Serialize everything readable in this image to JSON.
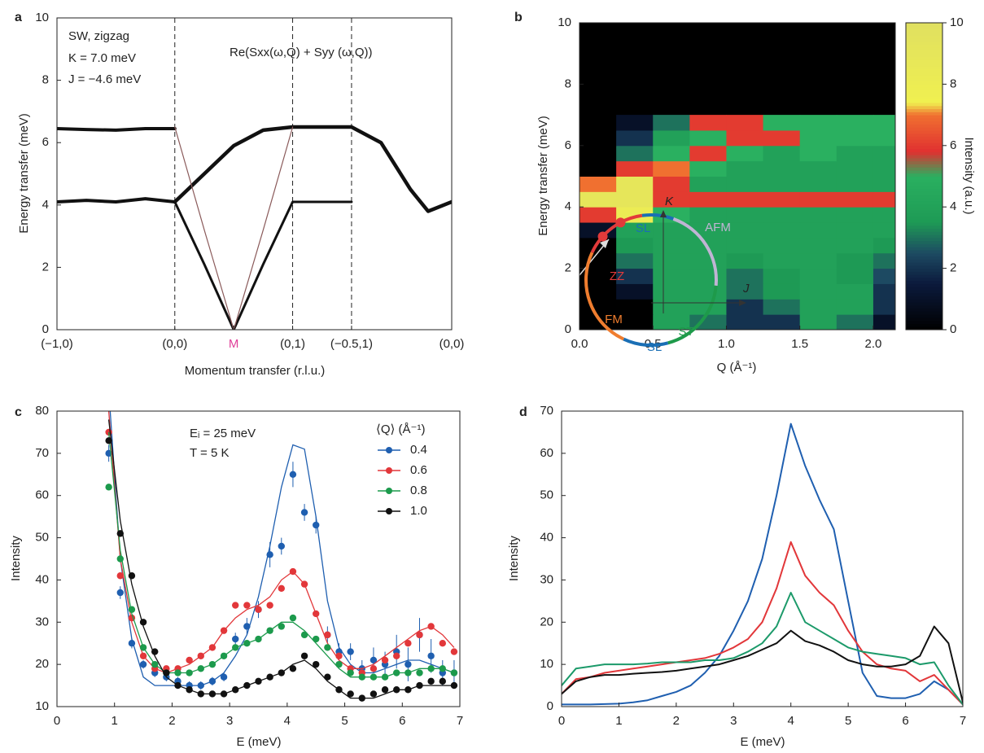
{
  "chart_data": [
    {
      "type": "line",
      "label": "a",
      "annotations": [
        "SW, zigzag",
        "K = 7.0 meV",
        "J = −4.6 meV",
        "Re(Sxx(ω,Q) + Syy (ω,Q))"
      ],
      "xlabel": "Momentum transfer (r.l.u.)",
      "ylabel": "Energy transfer (meV)",
      "xlim": [
        0,
        6.7
      ],
      "ylim": [
        0,
        10
      ],
      "xticks": [
        {
          "value": 0,
          "label": "(−1,0)"
        },
        {
          "value": 2,
          "label": "(0,0)"
        },
        {
          "value": 3,
          "label": "M",
          "color": "#e0409a"
        },
        {
          "value": 4,
          "label": "(0,1)"
        },
        {
          "value": 5,
          "label": "(−0.5,1)"
        },
        {
          "value": 6.7,
          "label": "(0,0)"
        }
      ],
      "yticks": [
        0,
        2,
        4,
        6,
        8,
        10
      ],
      "vlines": [
        2,
        4,
        5
      ],
      "x": [
        0,
        0.5,
        1,
        1.5,
        2,
        2.5,
        3,
        3.5,
        4,
        4.5,
        5,
        5.5,
        6,
        6.3,
        6.7
      ],
      "series": [
        {
          "color": "#111111",
          "width": 4,
          "values": [
            6.45,
            6.42,
            6.4,
            6.45,
            6.45,
            null,
            null,
            null,
            null,
            null,
            null,
            null,
            null,
            null,
            null
          ]
        },
        {
          "color": "#111111",
          "width": 4,
          "values": [
            4.1,
            4.15,
            4.1,
            4.2,
            4.1,
            null,
            null,
            null,
            null,
            null,
            null,
            null,
            null,
            null,
            null
          ]
        },
        {
          "color": "#111111",
          "width": 4.5,
          "values": [
            null,
            null,
            null,
            null,
            4.1,
            5.0,
            5.9,
            6.4,
            6.5,
            6.5,
            6.5,
            6.0,
            4.5,
            3.8,
            4.1
          ]
        },
        {
          "color": "#111111",
          "width": 3,
          "values": [
            null,
            null,
            null,
            null,
            4.1,
            2.1,
            0,
            2.1,
            4.1,
            4.1,
            4.1,
            null,
            null,
            null,
            null
          ]
        },
        {
          "color": "#8a5a5a",
          "width": 1.2,
          "values": [
            null,
            null,
            null,
            null,
            6.5,
            3.2,
            0,
            3.2,
            6.5,
            null,
            null,
            null,
            null,
            null,
            null
          ]
        }
      ]
    },
    {
      "type": "heatmap",
      "label": "b",
      "xlabel": "Q (Å⁻¹)",
      "ylabel": "Energy transfer (meV)",
      "colorbar_label": "Intensity (a.u.)",
      "xlim": [
        0,
        2.15
      ],
      "ylim": [
        0,
        10
      ],
      "xticks": [
        {
          "value": 0,
          "label": "0.0"
        },
        0.5,
        {
          "value": 1,
          "label": "1.0"
        },
        1.5,
        {
          "value": 2,
          "label": "2.0"
        }
      ],
      "yticks": [
        0,
        2,
        4,
        6,
        8,
        10
      ],
      "clim": [
        0,
        10
      ],
      "cticks": [
        0,
        2,
        4,
        6,
        8,
        10
      ],
      "background": "#000000",
      "colorscale": [
        [
          0,
          "#000000"
        ],
        [
          1.5,
          "#0b1a3c"
        ],
        [
          2.5,
          "#1d4a62"
        ],
        [
          3.5,
          "#1e9a55"
        ],
        [
          5,
          "#2ab060"
        ],
        [
          5.8,
          "#e03030"
        ],
        [
          7,
          "#f07030"
        ],
        [
          7.4,
          "#f0f050"
        ],
        [
          10,
          "#e0e060"
        ]
      ],
      "xbins": [
        0,
        0.25,
        0.5,
        0.75,
        1,
        1.25,
        1.5,
        1.75,
        2,
        2.15
      ],
      "ybins": [
        0,
        0.5,
        1,
        1.5,
        2,
        2.5,
        3,
        3.5,
        4,
        4.5,
        5,
        5.5,
        6,
        6.5,
        7
      ],
      "values": [
        [
          0,
          0,
          4,
          3,
          2,
          2,
          4,
          3,
          1
        ],
        [
          0,
          0,
          4,
          4,
          2,
          3,
          4,
          4,
          2
        ],
        [
          0,
          1,
          4,
          4,
          3,
          3.5,
          4,
          4,
          2
        ],
        [
          0,
          2,
          4,
          4,
          3,
          3.5,
          4,
          3.5,
          2.5
        ],
        [
          0,
          3,
          4,
          4,
          3.5,
          4,
          4,
          3.5,
          3
        ],
        [
          0,
          3.5,
          4,
          4,
          4,
          4,
          4,
          4,
          3.5
        ],
        [
          1,
          4,
          4,
          4,
          4,
          4,
          4,
          4,
          4
        ],
        [
          6,
          8,
          5,
          4,
          4,
          4,
          4,
          4,
          4
        ],
        [
          9,
          9,
          6,
          6,
          6,
          6,
          6,
          6,
          6
        ],
        [
          7,
          9,
          6,
          4,
          4,
          4,
          4,
          4,
          4
        ],
        [
          0,
          6,
          7,
          5,
          4,
          4,
          4,
          4,
          4
        ],
        [
          0,
          3,
          5,
          6,
          5,
          4,
          5,
          4,
          4
        ],
        [
          0,
          2,
          4,
          5,
          6,
          6,
          5,
          5,
          5
        ],
        [
          0,
          1,
          3,
          6,
          6,
          5,
          5,
          5,
          5
        ]
      ]
    },
    {
      "type": "scatter",
      "label": "c",
      "annotations": [
        "Eᵢ = 25 meV",
        "T = 5 K"
      ],
      "legend_title": "⟨Q⟩ (Å⁻¹)",
      "legend": "upper right",
      "xlabel": "E (meV)",
      "ylabel": "Intensity",
      "xlim": [
        0,
        7
      ],
      "ylim": [
        10,
        80
      ],
      "xticks": [
        0,
        1,
        2,
        3,
        4,
        5,
        6,
        7
      ],
      "yticks": [
        10,
        20,
        30,
        40,
        50,
        60,
        70,
        80
      ],
      "x": [
        0.9,
        1.1,
        1.3,
        1.5,
        1.7,
        1.9,
        2.1,
        2.3,
        2.5,
        2.7,
        2.9,
        3.1,
        3.3,
        3.5,
        3.7,
        3.9,
        4.1,
        4.3,
        4.5,
        4.7,
        4.9,
        5.1,
        5.3,
        5.5,
        5.7,
        5.9,
        6.1,
        6.3,
        6.5,
        6.7,
        6.9
      ],
      "series": [
        {
          "name": "0.4",
          "color": "#1f5fb0",
          "values": [
            70,
            37,
            25,
            20,
            18,
            17,
            16,
            15,
            15,
            16,
            17,
            26,
            29,
            33,
            46,
            48,
            65,
            56,
            53,
            27,
            23,
            23,
            19,
            21,
            20,
            23,
            20,
            27,
            22,
            18,
            18
          ],
          "errors": [
            2,
            1.5,
            1.2,
            1,
            1,
            1,
            1,
            1,
            1,
            1,
            1,
            1.5,
            2,
            2,
            3,
            2,
            3,
            2,
            2,
            2,
            2,
            2,
            2,
            3,
            3,
            4,
            4,
            4,
            4,
            3,
            3
          ],
          "fit": [
            85,
            45,
            26,
            17,
            15,
            15,
            15,
            15,
            15,
            16,
            18,
            22,
            27,
            36,
            48,
            62,
            72,
            71,
            55,
            35,
            24,
            20,
            18,
            18,
            19,
            20,
            21,
            21,
            20,
            19,
            18
          ]
        },
        {
          "name": "0.6",
          "color": "#e2373a",
          "values": [
            75,
            41,
            31,
            22,
            19,
            19,
            19,
            21,
            22,
            24,
            28,
            34,
            34,
            33,
            34,
            38,
            42,
            39,
            32,
            27,
            22,
            19,
            18,
            19,
            21,
            22,
            25,
            27,
            29,
            25,
            23
          ],
          "fit": [
            80,
            45,
            30,
            22,
            19,
            18,
            19,
            20,
            22,
            24,
            28,
            31,
            33,
            34,
            36,
            40,
            42,
            39,
            32,
            25,
            21,
            19,
            19,
            20,
            22,
            24,
            26,
            28,
            29,
            27,
            24
          ]
        },
        {
          "name": "0.8",
          "color": "#1c9a4c",
          "values": [
            62,
            45,
            33,
            24,
            20,
            18,
            18,
            18,
            19,
            20,
            22,
            24,
            25,
            26,
            28,
            29,
            31,
            27,
            26,
            24,
            20,
            18,
            17,
            17,
            17,
            18,
            18,
            18,
            19,
            19,
            18
          ],
          "fit": [
            75,
            47,
            32,
            24,
            20,
            18,
            18,
            18,
            19,
            20,
            22,
            24,
            25,
            26,
            28,
            30,
            30,
            28,
            25,
            22,
            19,
            17,
            17,
            17,
            17,
            18,
            18,
            19,
            19,
            19,
            18
          ]
        },
        {
          "name": "1.0",
          "color": "#111111",
          "values": [
            73,
            51,
            41,
            30,
            23,
            18,
            15,
            14,
            13,
            13,
            13,
            14,
            15,
            16,
            17,
            18,
            19,
            22,
            20,
            17,
            14,
            13,
            12,
            13,
            14,
            14,
            14,
            15,
            16,
            16,
            15
          ],
          "fit": [
            78,
            54,
            39,
            29,
            22,
            17,
            15,
            14,
            13,
            13,
            13,
            14,
            15,
            16,
            17,
            18,
            20,
            21,
            19,
            16,
            14,
            12,
            12,
            12,
            13,
            14,
            14,
            15,
            15,
            15,
            15
          ]
        }
      ]
    },
    {
      "type": "line",
      "label": "d",
      "xlabel": "E (meV)",
      "ylabel": "Intensity",
      "xlim": [
        0,
        7
      ],
      "ylim": [
        0,
        70
      ],
      "xticks": [
        0,
        1,
        2,
        3,
        4,
        5,
        6,
        7
      ],
      "yticks": [
        0,
        10,
        20,
        30,
        40,
        50,
        60,
        70
      ],
      "x": [
        0,
        0.25,
        0.5,
        0.75,
        1,
        1.25,
        1.5,
        1.75,
        2,
        2.25,
        2.5,
        2.75,
        3,
        3.25,
        3.5,
        3.75,
        4,
        4.25,
        4.5,
        4.75,
        5,
        5.25,
        5.5,
        5.75,
        6,
        6.25,
        6.5,
        6.75,
        7
      ],
      "series": [
        {
          "color": "#1f5fb0",
          "width": 2,
          "values": [
            0.5,
            0.5,
            0.5,
            0.6,
            0.7,
            1,
            1.5,
            2.5,
            3.5,
            5,
            8,
            12,
            18,
            25,
            35,
            50,
            67,
            57,
            49,
            42,
            25,
            8,
            2.5,
            2,
            2,
            3,
            6,
            4,
            0.5
          ]
        },
        {
          "color": "#e2373a",
          "width": 2,
          "values": [
            3,
            6.5,
            7,
            8,
            8.5,
            9,
            9.5,
            10,
            10.5,
            11,
            11.5,
            12.5,
            14,
            16,
            20,
            28,
            39,
            31,
            27,
            24,
            18,
            13,
            10,
            9,
            8.5,
            6,
            7.5,
            4,
            0.5
          ]
        },
        {
          "color": "#1c9a6a",
          "width": 2,
          "values": [
            5,
            9,
            9.5,
            10,
            10,
            10,
            10.2,
            10.5,
            10.5,
            10.5,
            11,
            11,
            11.5,
            13,
            15,
            19,
            27,
            20,
            18,
            16,
            14,
            13,
            12.5,
            12,
            11.5,
            10,
            10.5,
            5,
            0.5
          ]
        },
        {
          "color": "#111111",
          "width": 2,
          "values": [
            3,
            6,
            7,
            7.5,
            7.5,
            7.8,
            8,
            8.2,
            8.5,
            9,
            9.5,
            10,
            11,
            12,
            13.5,
            15,
            18,
            15.5,
            14.5,
            13,
            11,
            10,
            9.5,
            9.5,
            10,
            12,
            19,
            15,
            1
          ]
        }
      ],
      "inset": {
        "axes": [
          "K",
          "J"
        ],
        "segments": [
          {
            "label": "SL",
            "color": "#1a6fb5"
          },
          {
            "label": "AFM",
            "color": "#c0b4d4"
          },
          {
            "label": "ST",
            "color": "#1e9a4a"
          },
          {
            "label": "SL",
            "color": "#1a6fb5"
          },
          {
            "label": "FM",
            "color": "#ef7d2f"
          },
          {
            "label": "ZZ",
            "color": "#e23a3a"
          }
        ]
      }
    }
  ]
}
